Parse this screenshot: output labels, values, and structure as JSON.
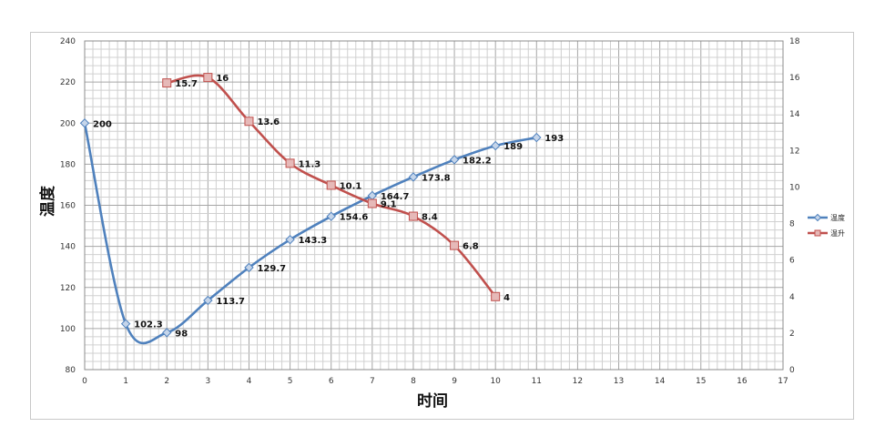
{
  "chart_data": {
    "type": "line",
    "xlabel": "时间",
    "ylabel": "温度",
    "xlim": [
      0,
      17
    ],
    "ylim": [
      80,
      240
    ],
    "y2lim": [
      0,
      18
    ],
    "x_ticks": [
      0,
      1,
      2,
      3,
      4,
      5,
      6,
      7,
      8,
      9,
      10,
      11,
      12,
      13,
      14,
      15,
      16,
      17
    ],
    "y_ticks": [
      80,
      100,
      120,
      140,
      160,
      180,
      200,
      220,
      240
    ],
    "y2_ticks": [
      0,
      2,
      4,
      6,
      8,
      10,
      12,
      14,
      16,
      18
    ],
    "grid": true,
    "legend_position": "right",
    "series": [
      {
        "name": "温度",
        "axis": "left",
        "color": "#4f81bd",
        "marker": "diamond",
        "x": [
          0,
          1,
          2,
          3,
          4,
          5,
          6,
          7,
          8,
          9,
          10,
          11
        ],
        "values": [
          200,
          102.3,
          98,
          113.7,
          129.7,
          143.3,
          154.6,
          164.7,
          173.8,
          182.2,
          189,
          193
        ],
        "labels": [
          "200",
          "102.3",
          "98",
          "113.7",
          "129.7",
          "143.3",
          "154.6",
          "164.7",
          "173.8",
          "182.2",
          "189",
          "193"
        ]
      },
      {
        "name": "温升",
        "axis": "right",
        "color": "#c0504d",
        "marker": "square",
        "x": [
          2,
          3,
          4,
          5,
          6,
          7,
          8,
          9,
          10
        ],
        "values": [
          15.7,
          16,
          13.6,
          11.3,
          10.1,
          9.1,
          8.4,
          6.8,
          4
        ],
        "labels": [
          "15.7",
          "16",
          "13.6",
          "11.3",
          "10.1",
          "9.1",
          "8.4",
          "6.8",
          "4"
        ]
      }
    ]
  }
}
